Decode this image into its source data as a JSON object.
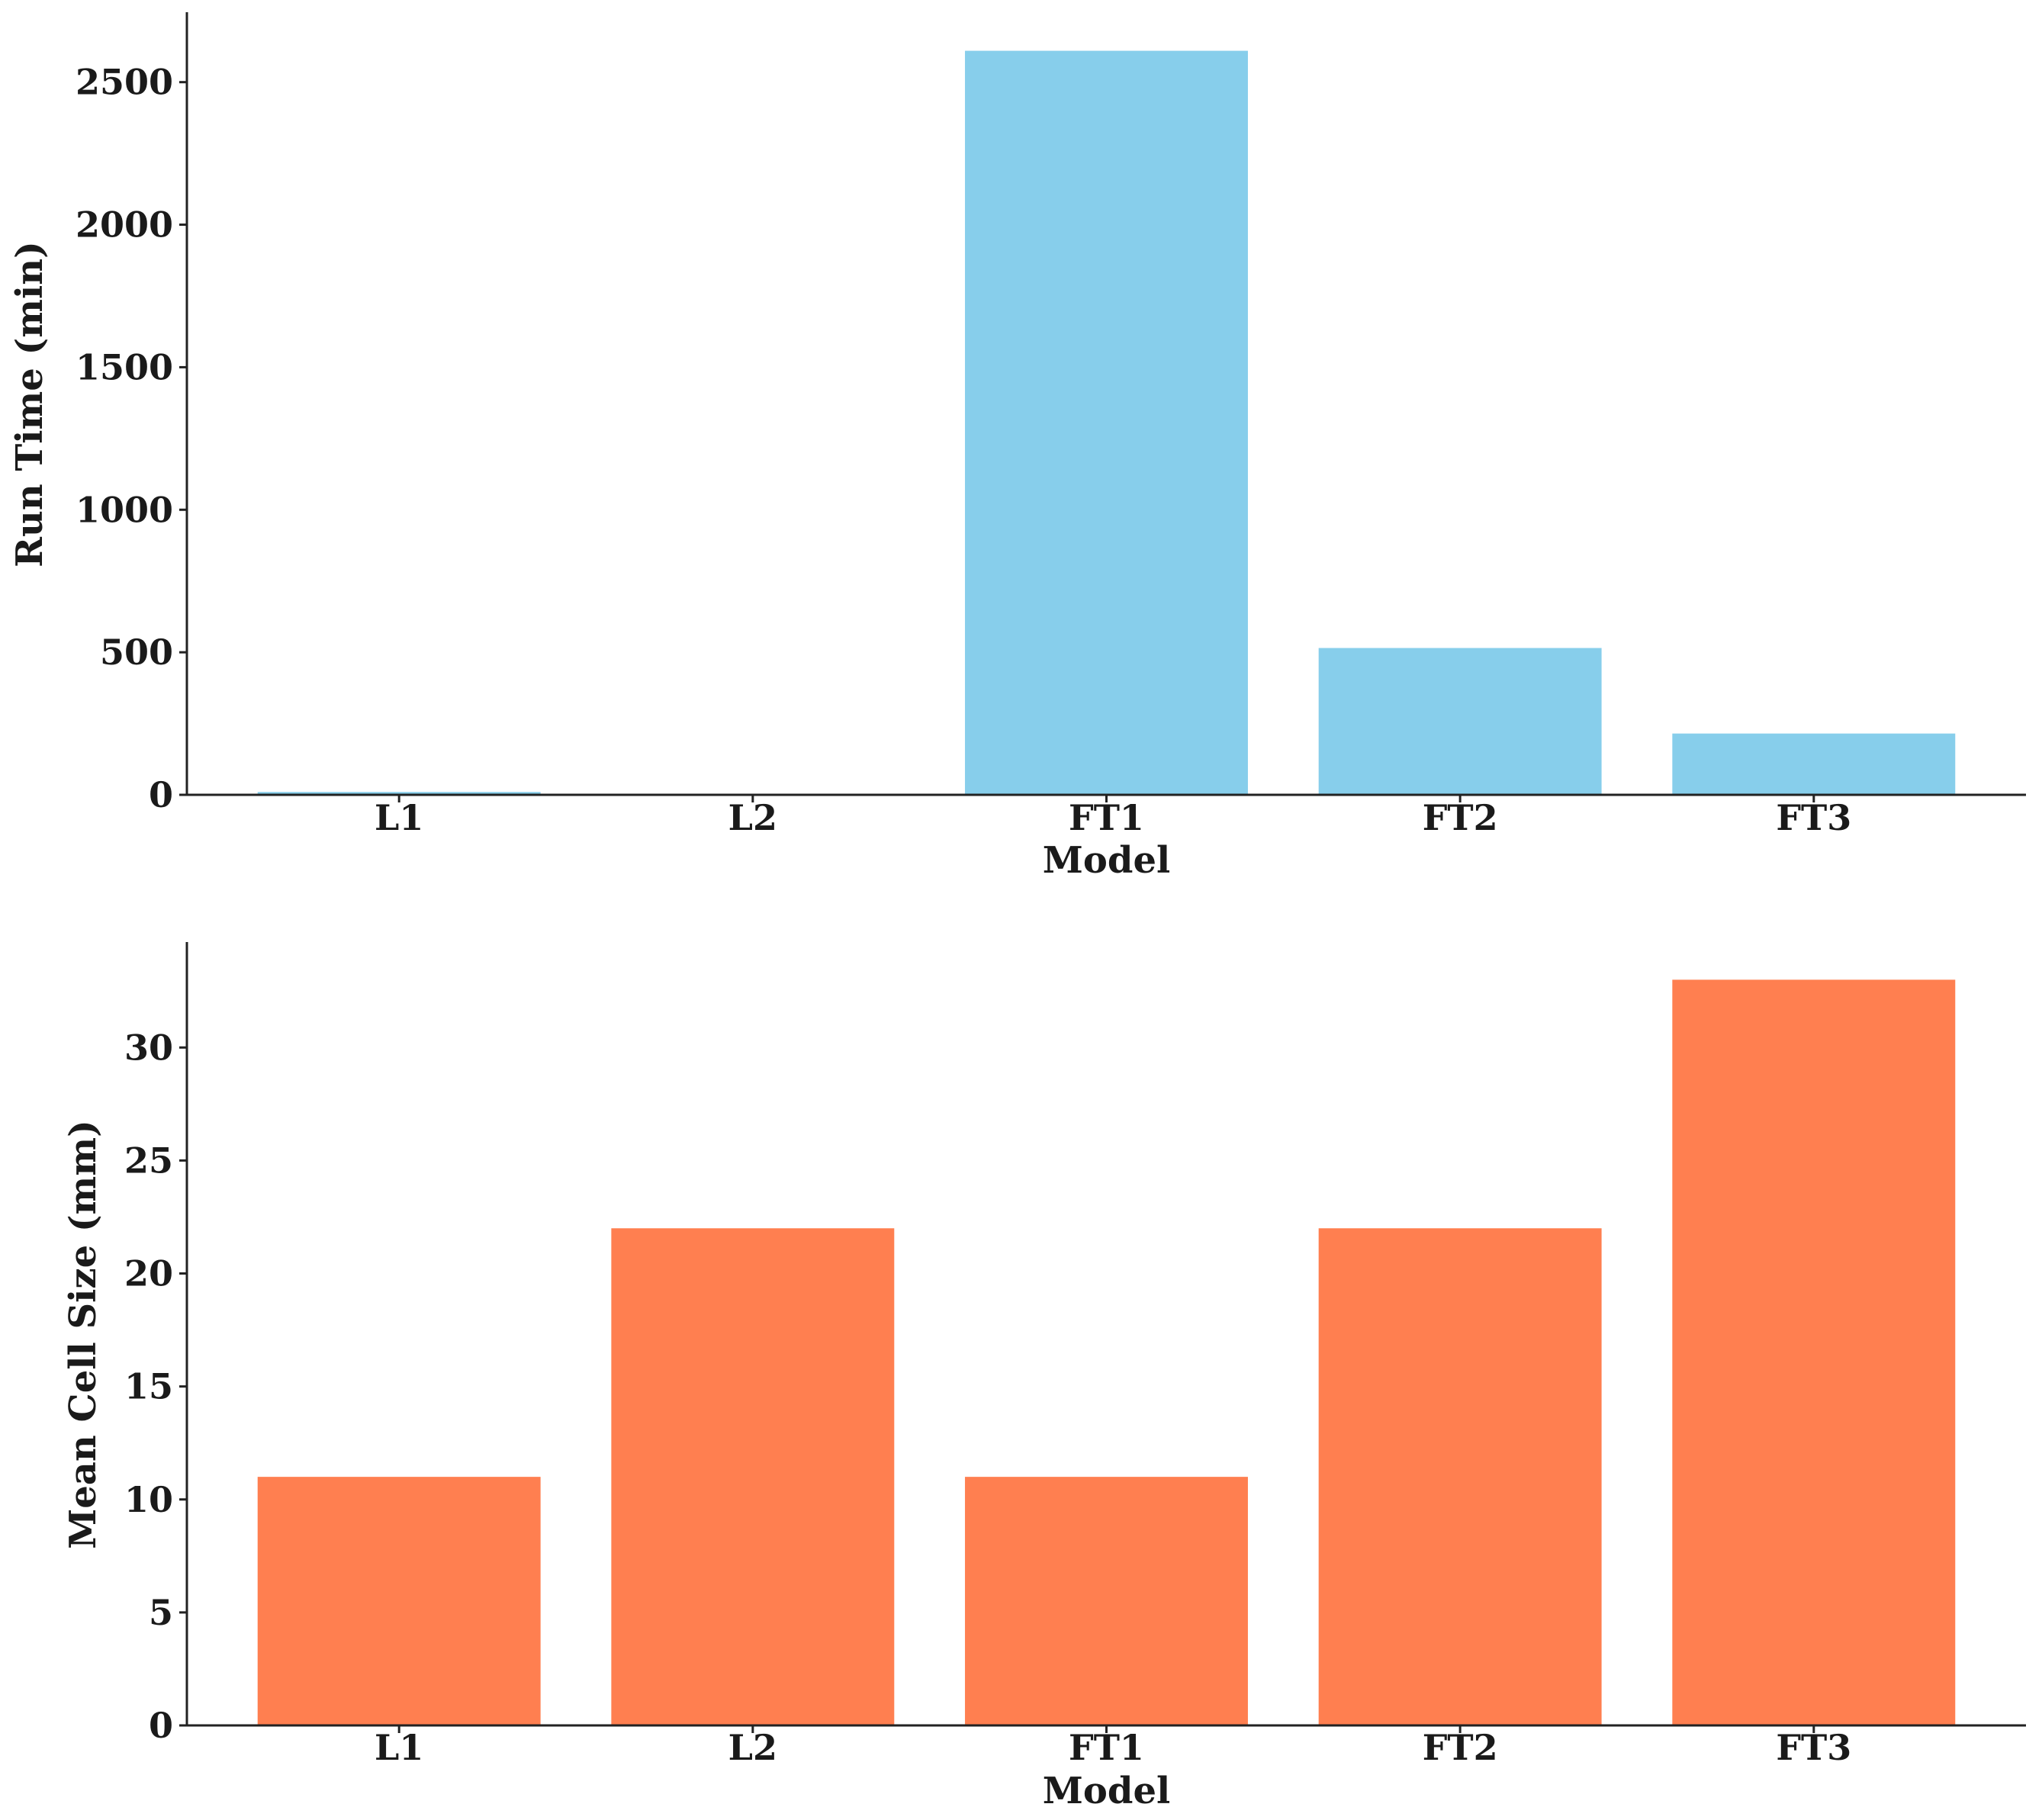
{
  "chart_data": [
    {
      "type": "bar",
      "categories": [
        "L1",
        "L2",
        "FT1",
        "FT2",
        "FT3"
      ],
      "values": [
        10,
        2,
        2610,
        515,
        215
      ],
      "xlabel": "Model",
      "ylabel": "Run Time (min)",
      "ylim": [
        0,
        2740
      ],
      "yticks": [
        0,
        500,
        1000,
        1500,
        2000,
        2500
      ],
      "bar_color": "#87CEEB",
      "grid": false
    },
    {
      "type": "bar",
      "categories": [
        "L1",
        "L2",
        "FT1",
        "FT2",
        "FT3"
      ],
      "values": [
        11,
        22,
        11,
        22,
        33
      ],
      "xlabel": "Model",
      "ylabel": "Mean Cell Size (mm)",
      "ylim": [
        0,
        34.6
      ],
      "yticks": [
        0,
        5,
        10,
        15,
        20,
        25,
        30
      ],
      "bar_color": "#FF7F50",
      "grid": false
    }
  ]
}
